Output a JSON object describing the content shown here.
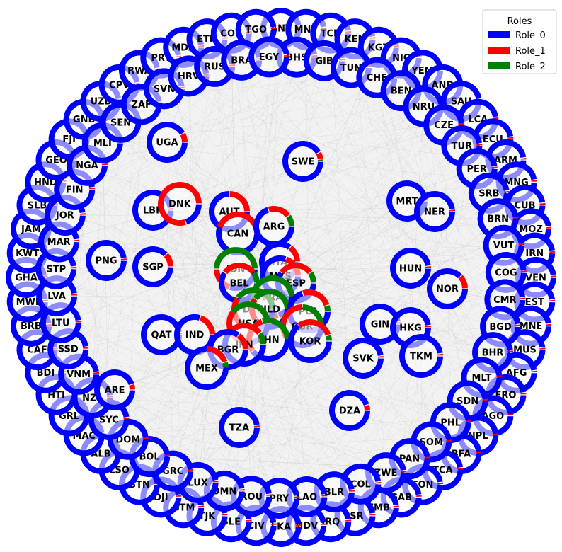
{
  "colors": {
    "Role_0": "#0000ff",
    "Role_1": "#ff0000",
    "Role_2": "#008000",
    "edge": "#b0b0b0",
    "background_disc": "#f2f2f2"
  },
  "legend": {
    "title": "Roles",
    "items": [
      {
        "label": "Role_0",
        "color": "#0000ff"
      },
      {
        "label": "Role_1",
        "color": "#ff0000"
      },
      {
        "label": "Role_2",
        "color": "#008000"
      }
    ]
  },
  "nodes": [
    {
      "label": "UGA",
      "roles": [
        0.92,
        0.08,
        0
      ]
    },
    {
      "label": "SWE",
      "roles": [
        0.92,
        0.06,
        0.02
      ]
    },
    {
      "label": "LBR",
      "roles": [
        0.98,
        0.02,
        0
      ]
    },
    {
      "label": "DNK",
      "roles": [
        0.2,
        0.8,
        0
      ]
    },
    {
      "label": "AUT",
      "roles": [
        0.75,
        0.25,
        0
      ]
    },
    {
      "label": "CAN",
      "roles": [
        0.55,
        0.45,
        0
      ]
    },
    {
      "label": "ARG",
      "roles": [
        0.7,
        0.2,
        0.1
      ]
    },
    {
      "label": "MRT",
      "roles": [
        0.98,
        0.02,
        0
      ]
    },
    {
      "label": "NER",
      "roles": [
        0.98,
        0.02,
        0
      ]
    },
    {
      "label": "PNG",
      "roles": [
        0.98,
        0.02,
        0
      ]
    },
    {
      "label": "SGP",
      "roles": [
        0.88,
        0.12,
        0
      ]
    },
    {
      "label": "IDN",
      "roles": [
        0.3,
        0.2,
        0.5
      ]
    },
    {
      "label": "ITA",
      "roles": [
        0.85,
        0.15,
        0
      ]
    },
    {
      "label": "MYS",
      "roles": [
        0.8,
        0.2,
        0
      ]
    },
    {
      "label": "BEL",
      "roles": [
        0.6,
        0.3,
        0.1
      ]
    },
    {
      "label": "ESP",
      "roles": [
        0.6,
        0.3,
        0.1
      ]
    },
    {
      "label": "FRA",
      "roles": [
        0.2,
        0.2,
        0.6
      ]
    },
    {
      "label": "HUN",
      "roles": [
        0.98,
        0.02,
        0
      ]
    },
    {
      "label": "NOR",
      "roles": [
        0.88,
        0.12,
        0
      ]
    },
    {
      "label": "DEU",
      "roles": [
        0.3,
        0.3,
        0.4
      ]
    },
    {
      "label": "NLD",
      "roles": [
        0.4,
        0.2,
        0.4
      ]
    },
    {
      "label": "POL",
      "roles": [
        0.7,
        0.25,
        0.05
      ]
    },
    {
      "label": "USA",
      "roles": [
        0.3,
        0.3,
        0.4
      ]
    },
    {
      "label": "GBR",
      "roles": [
        0.4,
        0.35,
        0.25
      ]
    },
    {
      "label": "GIN",
      "roles": [
        0.98,
        0.02,
        0
      ]
    },
    {
      "label": "HKG",
      "roles": [
        0.98,
        0.02,
        0
      ]
    },
    {
      "label": "QAT",
      "roles": [
        0.98,
        0.02,
        0
      ]
    },
    {
      "label": "IND",
      "roles": [
        0.8,
        0.2,
        0
      ]
    },
    {
      "label": "CHN",
      "roles": [
        0.4,
        0.3,
        0.3
      ]
    },
    {
      "label": "KOR",
      "roles": [
        0.65,
        0.3,
        0.05
      ]
    },
    {
      "label": "JPN",
      "roles": [
        0.6,
        0.3,
        0.1
      ]
    },
    {
      "label": "BGR",
      "roles": [
        0.85,
        0.15,
        0
      ]
    },
    {
      "label": "MEX",
      "roles": [
        0.75,
        0.2,
        0.05
      ]
    },
    {
      "label": "SVK",
      "roles": [
        0.98,
        0.02,
        0
      ]
    },
    {
      "label": "TKM",
      "roles": [
        0.98,
        0.02,
        0
      ]
    },
    {
      "label": "ARE",
      "roles": [
        0.95,
        0.05,
        0
      ]
    },
    {
      "label": "DZA",
      "roles": [
        0.95,
        0.05,
        0
      ]
    },
    {
      "label": "TZA",
      "roles": [
        0.98,
        0.02,
        0
      ]
    },
    {
      "label": "ANT",
      "roles": [
        0.98,
        0.02,
        0
      ]
    },
    {
      "label": "MNP",
      "roles": [
        0.98,
        0.02,
        0
      ]
    },
    {
      "label": "TCD",
      "roles": [
        0.98,
        0.02,
        0
      ]
    },
    {
      "label": "KEN",
      "roles": [
        0.98,
        0.02,
        0
      ]
    },
    {
      "label": "KGZ",
      "roles": [
        0.98,
        0.02,
        0
      ]
    },
    {
      "label": "NIC",
      "roles": [
        0.98,
        0.02,
        0
      ]
    },
    {
      "label": "YEM",
      "roles": [
        0.98,
        0.02,
        0
      ]
    },
    {
      "label": "AND",
      "roles": [
        0.98,
        0.02,
        0
      ]
    },
    {
      "label": "SAU",
      "roles": [
        0.98,
        0.02,
        0
      ]
    },
    {
      "label": "LCA",
      "roles": [
        0.98,
        0.02,
        0
      ]
    },
    {
      "label": "ECU",
      "roles": [
        0.98,
        0.02,
        0
      ]
    },
    {
      "label": "ARM",
      "roles": [
        0.98,
        0.02,
        0
      ]
    },
    {
      "label": "MNG",
      "roles": [
        0.98,
        0.02,
        0
      ]
    },
    {
      "label": "CUB",
      "roles": [
        0.98,
        0.02,
        0
      ]
    },
    {
      "label": "MOZ",
      "roles": [
        0.98,
        0.02,
        0
      ]
    },
    {
      "label": "IRN",
      "roles": [
        0.98,
        0.02,
        0
      ]
    },
    {
      "label": "VEN",
      "roles": [
        0.98,
        0.02,
        0
      ]
    },
    {
      "label": "EST",
      "roles": [
        0.98,
        0.02,
        0
      ]
    },
    {
      "label": "MNE",
      "roles": [
        0.98,
        0.02,
        0
      ]
    },
    {
      "label": "MUS",
      "roles": [
        0.98,
        0.02,
        0
      ]
    },
    {
      "label": "AFG",
      "roles": [
        0.98,
        0.02,
        0
      ]
    },
    {
      "label": "FRO",
      "roles": [
        0.98,
        0.02,
        0
      ]
    },
    {
      "label": "AGO",
      "roles": [
        0.98,
        0.02,
        0
      ]
    },
    {
      "label": "NPL",
      "roles": [
        0.98,
        0.02,
        0
      ]
    },
    {
      "label": "BFA",
      "roles": [
        0.98,
        0.02,
        0
      ]
    },
    {
      "label": "TCA",
      "roles": [
        0.98,
        0.02,
        0
      ]
    },
    {
      "label": "TON",
      "roles": [
        0.98,
        0.02,
        0
      ]
    },
    {
      "label": "GAB",
      "roles": [
        0.98,
        0.02,
        0
      ]
    },
    {
      "label": "ZMB",
      "roles": [
        0.98,
        0.02,
        0
      ]
    },
    {
      "label": "ISR",
      "roles": [
        0.98,
        0.02,
        0
      ]
    },
    {
      "label": "IRQ",
      "roles": [
        0.98,
        0.02,
        0
      ]
    },
    {
      "label": "MDV",
      "roles": [
        0.98,
        0.02,
        0
      ]
    },
    {
      "label": "LKA",
      "roles": [
        0.98,
        0.02,
        0
      ]
    },
    {
      "label": "CIV",
      "roles": [
        0.98,
        0.02,
        0
      ]
    },
    {
      "label": "SLE",
      "roles": [
        0.98,
        0.02,
        0
      ]
    },
    {
      "label": "TJK",
      "roles": [
        0.98,
        0.02,
        0
      ]
    },
    {
      "label": "GTM",
      "roles": [
        0.98,
        0.02,
        0
      ]
    },
    {
      "label": "DJI",
      "roles": [
        0.98,
        0.02,
        0
      ]
    },
    {
      "label": "BTN",
      "roles": [
        0.98,
        0.02,
        0
      ]
    },
    {
      "label": "LSO",
      "roles": [
        0.98,
        0.02,
        0
      ]
    },
    {
      "label": "ALB",
      "roles": [
        0.98,
        0.02,
        0
      ]
    },
    {
      "label": "MAC",
      "roles": [
        0.98,
        0.02,
        0
      ]
    },
    {
      "label": "GRL",
      "roles": [
        0.98,
        0.02,
        0
      ]
    },
    {
      "label": "HTI",
      "roles": [
        0.98,
        0.02,
        0
      ]
    },
    {
      "label": "BDI",
      "roles": [
        0.98,
        0.02,
        0
      ]
    },
    {
      "label": "CAF",
      "roles": [
        0.98,
        0.02,
        0
      ]
    },
    {
      "label": "BRB",
      "roles": [
        0.98,
        0.02,
        0
      ]
    },
    {
      "label": "MWI",
      "roles": [
        0.98,
        0.02,
        0
      ]
    },
    {
      "label": "GHA",
      "roles": [
        0.98,
        0.02,
        0
      ]
    },
    {
      "label": "KWT",
      "roles": [
        0.98,
        0.02,
        0
      ]
    },
    {
      "label": "JAM",
      "roles": [
        0.98,
        0.02,
        0
      ]
    },
    {
      "label": "SLB",
      "roles": [
        0.98,
        0.02,
        0
      ]
    },
    {
      "label": "HND",
      "roles": [
        0.98,
        0.02,
        0
      ]
    },
    {
      "label": "GEO",
      "roles": [
        0.98,
        0.02,
        0
      ]
    },
    {
      "label": "FJI",
      "roles": [
        0.98,
        0.02,
        0
      ]
    },
    {
      "label": "GNB",
      "roles": [
        0.98,
        0.02,
        0
      ]
    },
    {
      "label": "UZB",
      "roles": [
        0.98,
        0.02,
        0
      ]
    },
    {
      "label": "CPV",
      "roles": [
        0.98,
        0.02,
        0
      ]
    },
    {
      "label": "RWA",
      "roles": [
        0.98,
        0.02,
        0
      ]
    },
    {
      "label": "PRT",
      "roles": [
        0.98,
        0.02,
        0
      ]
    },
    {
      "label": "MDA",
      "roles": [
        0.98,
        0.02,
        0
      ]
    },
    {
      "label": "ETH",
      "roles": [
        0.98,
        0.02,
        0
      ]
    },
    {
      "label": "COK",
      "roles": [
        0.98,
        0.02,
        0
      ]
    },
    {
      "label": "TGO",
      "roles": [
        0.98,
        0.02,
        0
      ]
    },
    {
      "label": "BHS",
      "roles": [
        0.98,
        0.02,
        0
      ]
    },
    {
      "label": "GIB",
      "roles": [
        0.98,
        0.02,
        0
      ]
    },
    {
      "label": "TUN",
      "roles": [
        0.98,
        0.02,
        0
      ]
    },
    {
      "label": "CHE",
      "roles": [
        0.98,
        0.02,
        0
      ]
    },
    {
      "label": "BEN",
      "roles": [
        0.98,
        0.02,
        0
      ]
    },
    {
      "label": "NRU",
      "roles": [
        0.98,
        0.02,
        0
      ]
    },
    {
      "label": "CZE",
      "roles": [
        0.98,
        0.02,
        0
      ]
    },
    {
      "label": "TUR",
      "roles": [
        0.98,
        0.02,
        0
      ]
    },
    {
      "label": "PER",
      "roles": [
        0.98,
        0.02,
        0
      ]
    },
    {
      "label": "SRB",
      "roles": [
        0.98,
        0.02,
        0
      ]
    },
    {
      "label": "BRN",
      "roles": [
        0.98,
        0.02,
        0
      ]
    },
    {
      "label": "VUT",
      "roles": [
        0.98,
        0.02,
        0
      ]
    },
    {
      "label": "COG",
      "roles": [
        0.98,
        0.02,
        0
      ]
    },
    {
      "label": "CMR",
      "roles": [
        0.98,
        0.02,
        0
      ]
    },
    {
      "label": "BGD",
      "roles": [
        0.98,
        0.02,
        0
      ]
    },
    {
      "label": "BHR",
      "roles": [
        0.98,
        0.02,
        0
      ]
    },
    {
      "label": "MLT",
      "roles": [
        0.98,
        0.02,
        0
      ]
    },
    {
      "label": "SDN",
      "roles": [
        0.98,
        0.02,
        0
      ]
    },
    {
      "label": "PHL",
      "roles": [
        0.98,
        0.02,
        0
      ]
    },
    {
      "label": "SOM",
      "roles": [
        0.98,
        0.02,
        0
      ]
    },
    {
      "label": "PAN",
      "roles": [
        0.98,
        0.02,
        0
      ]
    },
    {
      "label": "ZWE",
      "roles": [
        0.98,
        0.02,
        0
      ]
    },
    {
      "label": "COL",
      "roles": [
        0.98,
        0.02,
        0
      ]
    },
    {
      "label": "BLR",
      "roles": [
        0.98,
        0.02,
        0
      ]
    },
    {
      "label": "LAO",
      "roles": [
        0.98,
        0.02,
        0
      ]
    },
    {
      "label": "PRY",
      "roles": [
        0.98,
        0.02,
        0
      ]
    },
    {
      "label": "ROU",
      "roles": [
        0.98,
        0.02,
        0
      ]
    },
    {
      "label": "OMN",
      "roles": [
        0.98,
        0.02,
        0
      ]
    },
    {
      "label": "LUX",
      "roles": [
        0.98,
        0.02,
        0
      ]
    },
    {
      "label": "GRC",
      "roles": [
        0.98,
        0.02,
        0
      ]
    },
    {
      "label": "BOL",
      "roles": [
        0.98,
        0.02,
        0
      ]
    },
    {
      "label": "DOM",
      "roles": [
        0.98,
        0.02,
        0
      ]
    },
    {
      "label": "SYC",
      "roles": [
        0.98,
        0.02,
        0
      ]
    },
    {
      "label": "NZL",
      "roles": [
        0.98,
        0.02,
        0
      ]
    },
    {
      "label": "VNM",
      "roles": [
        0.98,
        0.02,
        0
      ]
    },
    {
      "label": "SSD",
      "roles": [
        0.98,
        0.02,
        0
      ]
    },
    {
      "label": "LTU",
      "roles": [
        0.98,
        0.02,
        0
      ]
    },
    {
      "label": "LVA",
      "roles": [
        0.98,
        0.02,
        0
      ]
    },
    {
      "label": "STP",
      "roles": [
        0.98,
        0.02,
        0
      ]
    },
    {
      "label": "MAR",
      "roles": [
        0.98,
        0.02,
        0
      ]
    },
    {
      "label": "JOR",
      "roles": [
        0.98,
        0.02,
        0
      ]
    },
    {
      "label": "FIN",
      "roles": [
        0.98,
        0.02,
        0
      ]
    },
    {
      "label": "NGA",
      "roles": [
        0.98,
        0.02,
        0
      ]
    },
    {
      "label": "MLI",
      "roles": [
        0.98,
        0.02,
        0
      ]
    },
    {
      "label": "SEN",
      "roles": [
        0.98,
        0.02,
        0
      ]
    },
    {
      "label": "ZAF",
      "roles": [
        0.98,
        0.02,
        0
      ]
    },
    {
      "label": "SVN",
      "roles": [
        0.98,
        0.02,
        0
      ]
    },
    {
      "label": "HRV",
      "roles": [
        0.98,
        0.02,
        0
      ]
    },
    {
      "label": "RUS",
      "roles": [
        0.98,
        0.02,
        0
      ]
    },
    {
      "label": "BRA",
      "roles": [
        0.98,
        0.02,
        0
      ]
    },
    {
      "label": "EGY",
      "roles": [
        0.98,
        0.02,
        0
      ]
    }
  ]
}
